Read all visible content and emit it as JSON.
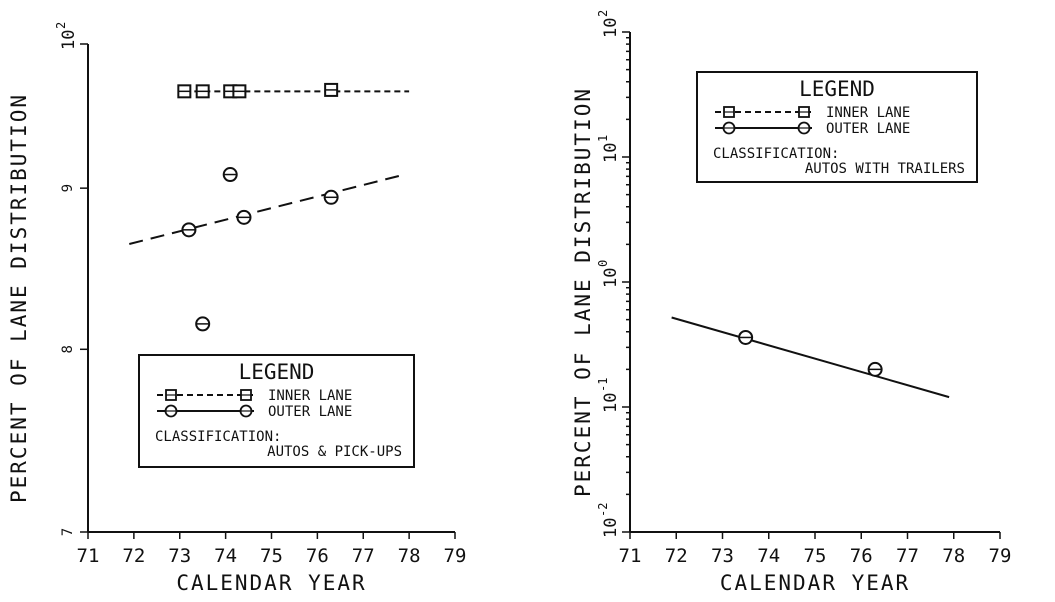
{
  "chart_data": [
    {
      "type": "scatter",
      "title": "",
      "xlabel": "CALENDAR YEAR",
      "ylabel": "PERCENT OF LANE DISTRIBUTION",
      "xlim": [
        71,
        79
      ],
      "x_ticks": [
        "71",
        "72",
        "73",
        "74",
        "75",
        "76",
        "77",
        "78",
        "79"
      ],
      "y_scale": "log",
      "ylim": [
        70,
        100
      ],
      "y_ticks": [
        {
          "value": 100,
          "base": "10",
          "exp": "2",
          "label": ""
        },
        {
          "value": 90,
          "base": "",
          "exp": "",
          "label": "9"
        },
        {
          "value": 80,
          "base": "",
          "exp": "",
          "label": "8"
        },
        {
          "value": 70,
          "base": "",
          "exp": "",
          "label": "7"
        }
      ],
      "grid": false,
      "legend": {
        "position": "bottom-right",
        "title": "LEGEND",
        "classification_label": "CLASSIFICATION:",
        "classification_value": "AUTOS & PICK-UPS"
      },
      "series": [
        {
          "name": "INNER LANE",
          "marker": "square",
          "line": "short-dash",
          "points": [
            [
              73.1,
              96.6
            ],
            [
              73.5,
              96.6
            ],
            [
              74.1,
              96.6
            ],
            [
              74.3,
              96.6
            ],
            [
              76.3,
              96.7
            ]
          ],
          "trend": [
            [
              73.1,
              96.6
            ],
            [
              78.0,
              96.6
            ]
          ]
        },
        {
          "name": "OUTER LANE",
          "marker": "circle",
          "line": "long-dash",
          "points": [
            [
              73.2,
              87.3
            ],
            [
              73.5,
              81.5
            ],
            [
              74.1,
              90.9
            ],
            [
              74.4,
              88.1
            ],
            [
              76.3,
              89.4
            ]
          ],
          "trend": [
            [
              71.9,
              86.4
            ],
            [
              77.9,
              90.9
            ]
          ]
        }
      ]
    },
    {
      "type": "scatter",
      "title": "",
      "xlabel": "CALENDAR YEAR",
      "ylabel": "PERCENT OF LANE DISTRIBUTION",
      "xlim": [
        71,
        79
      ],
      "x_ticks": [
        "71",
        "72",
        "73",
        "74",
        "75",
        "76",
        "77",
        "78",
        "79"
      ],
      "y_scale": "log",
      "ylim": [
        0.01,
        100
      ],
      "y_ticks": [
        {
          "value": 100,
          "base": "10",
          "exp": "2",
          "label": ""
        },
        {
          "value": 10,
          "base": "10",
          "exp": "1",
          "label": ""
        },
        {
          "value": 1,
          "base": "10",
          "exp": "0",
          "label": ""
        },
        {
          "value": 0.1,
          "base": "10",
          "exp": "-1",
          "label": ""
        },
        {
          "value": 0.01,
          "base": "10",
          "exp": "-2",
          "label": ""
        }
      ],
      "grid": false,
      "legend": {
        "position": "top-center",
        "title": "LEGEND",
        "classification_label": "CLASSIFICATION:",
        "classification_value": "AUTOS WITH TRAILERS"
      },
      "series": [
        {
          "name": "INNER LANE",
          "marker": "square",
          "line": "short-dash",
          "points": [],
          "trend": []
        },
        {
          "name": "OUTER LANE",
          "marker": "circle",
          "line": "solid",
          "points": [
            [
              73.5,
              0.36
            ],
            [
              76.3,
              0.2
            ]
          ],
          "trend": [
            [
              71.9,
              0.52
            ],
            [
              77.9,
              0.12
            ]
          ]
        }
      ]
    }
  ]
}
